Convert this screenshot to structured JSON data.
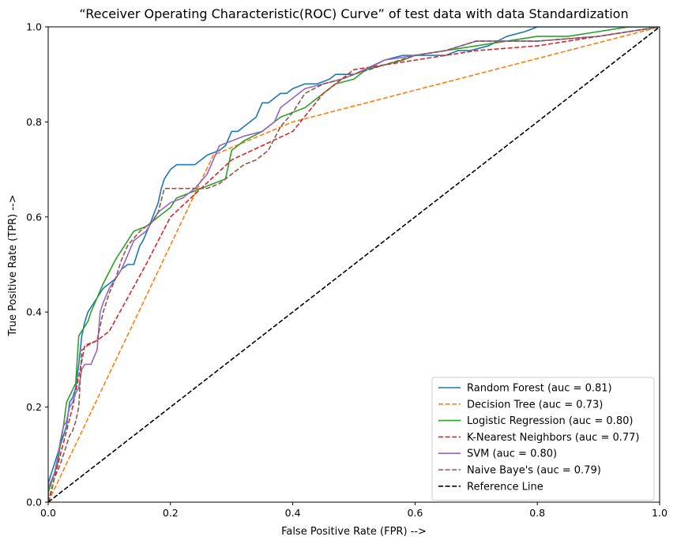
{
  "chart_data": {
    "type": "line",
    "title": "“Receiver Operating Characteristic(ROC) Curve” of test data with data Standardization",
    "xlabel": "False Positive Rate (FPR) -->",
    "ylabel": "True Positive Rate (TPR) -->",
    "xlim": [
      0,
      1.0
    ],
    "ylim": [
      0,
      1.0
    ],
    "xticks": [
      "0.0",
      "0.2",
      "0.4",
      "0.6",
      "0.8",
      "1.0"
    ],
    "yticks": [
      "0.0",
      "0.2",
      "0.4",
      "0.6",
      "0.8",
      "1.0"
    ],
    "grid": false,
    "legend_position": "lower right",
    "series": [
      {
        "name": "Random Forest (auc = 0.81)",
        "color": "#1f77b4",
        "dash": "solid",
        "x": [
          0,
          0,
          0.01,
          0.02,
          0.03,
          0.035,
          0.04,
          0.045,
          0.05,
          0.055,
          0.06,
          0.065,
          0.07,
          0.08,
          0.09,
          0.1,
          0.11,
          0.12,
          0.13,
          0.14,
          0.15,
          0.155,
          0.165,
          0.18,
          0.185,
          0.19,
          0.195,
          0.2,
          0.21,
          0.22,
          0.24,
          0.26,
          0.28,
          0.29,
          0.3,
          0.31,
          0.32,
          0.33,
          0.34,
          0.35,
          0.36,
          0.37,
          0.38,
          0.39,
          0.4,
          0.42,
          0.44,
          0.46,
          0.47,
          0.48,
          0.5,
          0.52,
          0.55,
          0.58,
          0.6,
          0.62,
          0.65,
          0.67,
          0.69,
          0.72,
          0.75,
          0.78,
          0.8,
          0.85,
          0.9,
          0.95,
          1.0
        ],
        "y": [
          0,
          0.04,
          0.08,
          0.12,
          0.16,
          0.21,
          0.22,
          0.24,
          0.29,
          0.35,
          0.38,
          0.4,
          0.41,
          0.43,
          0.45,
          0.46,
          0.47,
          0.49,
          0.5,
          0.5,
          0.54,
          0.55,
          0.58,
          0.63,
          0.66,
          0.68,
          0.69,
          0.7,
          0.71,
          0.71,
          0.71,
          0.73,
          0.74,
          0.75,
          0.78,
          0.78,
          0.79,
          0.8,
          0.81,
          0.84,
          0.84,
          0.85,
          0.86,
          0.86,
          0.87,
          0.88,
          0.88,
          0.89,
          0.9,
          0.9,
          0.9,
          0.91,
          0.93,
          0.94,
          0.94,
          0.94,
          0.94,
          0.95,
          0.95,
          0.96,
          0.98,
          0.99,
          1.0,
          1.0,
          1.0,
          1.0,
          1.0
        ]
      },
      {
        "name": "Decision Tree (auc = 0.73)",
        "color": "#ff7f0e",
        "dash": "dashed",
        "x": [
          0,
          0.27,
          0.4,
          1.0
        ],
        "y": [
          0,
          0.73,
          0.8,
          1.0
        ]
      },
      {
        "name": "Logistic Regression (auc = 0.80)",
        "color": "#2ca02c",
        "dash": "solid",
        "x": [
          0,
          0,
          0.005,
          0.01,
          0.015,
          0.02,
          0.025,
          0.03,
          0.045,
          0.05,
          0.055,
          0.06,
          0.065,
          0.07,
          0.08,
          0.09,
          0.11,
          0.115,
          0.12,
          0.125,
          0.13,
          0.14,
          0.16,
          0.17,
          0.18,
          0.19,
          0.2,
          0.21,
          0.23,
          0.25,
          0.27,
          0.29,
          0.3,
          0.32,
          0.35,
          0.36,
          0.38,
          0.4,
          0.42,
          0.44,
          0.46,
          0.47,
          0.5,
          0.52,
          0.55,
          0.58,
          0.6,
          0.65,
          0.7,
          0.75,
          0.8,
          0.85,
          0.9,
          0.95,
          1.0
        ],
        "y": [
          0,
          0.02,
          0.04,
          0.06,
          0.08,
          0.12,
          0.16,
          0.21,
          0.25,
          0.35,
          0.36,
          0.37,
          0.38,
          0.4,
          0.43,
          0.46,
          0.51,
          0.52,
          0.53,
          0.54,
          0.55,
          0.57,
          0.58,
          0.59,
          0.6,
          0.61,
          0.62,
          0.64,
          0.65,
          0.66,
          0.67,
          0.68,
          0.74,
          0.76,
          0.78,
          0.79,
          0.81,
          0.82,
          0.83,
          0.85,
          0.87,
          0.88,
          0.89,
          0.91,
          0.92,
          0.93,
          0.94,
          0.95,
          0.96,
          0.97,
          0.98,
          0.98,
          0.99,
          1.0,
          1.0
        ]
      },
      {
        "name": "K-Nearest Neighbors (auc = 0.77)",
        "color": "#d62728",
        "dash": "dashed",
        "x": [
          0,
          0.02,
          0.04,
          0.06,
          0.08,
          0.1,
          0.13,
          0.16,
          0.2,
          0.25,
          0.3,
          0.35,
          0.4,
          0.45,
          0.5,
          0.6,
          0.7,
          0.8,
          0.9,
          1.0
        ],
        "y": [
          0,
          0.1,
          0.2,
          0.33,
          0.34,
          0.36,
          0.43,
          0.5,
          0.6,
          0.66,
          0.72,
          0.75,
          0.78,
          0.86,
          0.91,
          0.93,
          0.95,
          0.96,
          0.98,
          1.0
        ]
      },
      {
        "name": "SVM (auc = 0.80)",
        "color": "#9467bd",
        "dash": "solid",
        "x": [
          0,
          0,
          0.01,
          0.015,
          0.02,
          0.025,
          0.03,
          0.035,
          0.04,
          0.045,
          0.05,
          0.055,
          0.06,
          0.07,
          0.08,
          0.085,
          0.09,
          0.1,
          0.11,
          0.12,
          0.13,
          0.14,
          0.15,
          0.16,
          0.17,
          0.18,
          0.2,
          0.22,
          0.24,
          0.26,
          0.27,
          0.28,
          0.3,
          0.32,
          0.35,
          0.37,
          0.38,
          0.4,
          0.42,
          0.45,
          0.48,
          0.5,
          0.55,
          0.6,
          0.65,
          0.7,
          0.8,
          0.9,
          1.0
        ],
        "y": [
          0,
          0.03,
          0.06,
          0.09,
          0.13,
          0.16,
          0.17,
          0.2,
          0.21,
          0.23,
          0.24,
          0.28,
          0.29,
          0.29,
          0.32,
          0.4,
          0.42,
          0.45,
          0.47,
          0.49,
          0.52,
          0.55,
          0.56,
          0.57,
          0.59,
          0.61,
          0.63,
          0.64,
          0.66,
          0.69,
          0.72,
          0.75,
          0.76,
          0.77,
          0.78,
          0.8,
          0.83,
          0.85,
          0.87,
          0.88,
          0.89,
          0.9,
          0.93,
          0.94,
          0.95,
          0.97,
          0.97,
          0.98,
          1.0
        ]
      },
      {
        "name": "Naive Baye's (auc = 0.79)",
        "color": "#8c564b",
        "dash": "dashed",
        "x": [
          0,
          0.005,
          0.01,
          0.02,
          0.025,
          0.03,
          0.035,
          0.04,
          0.045,
          0.05,
          0.055,
          0.065,
          0.08,
          0.09,
          0.1,
          0.11,
          0.12,
          0.13,
          0.15,
          0.17,
          0.18,
          0.19,
          0.2,
          0.22,
          0.24,
          0.26,
          0.28,
          0.3,
          0.32,
          0.34,
          0.36,
          0.38,
          0.4,
          0.42,
          0.45,
          0.48,
          0.5,
          0.55,
          0.6,
          0.65,
          0.7,
          0.8,
          0.9,
          0.95,
          1.0
        ],
        "y": [
          0,
          0.02,
          0.05,
          0.08,
          0.1,
          0.12,
          0.14,
          0.15,
          0.17,
          0.2,
          0.32,
          0.33,
          0.34,
          0.4,
          0.44,
          0.47,
          0.51,
          0.54,
          0.57,
          0.59,
          0.61,
          0.66,
          0.66,
          0.66,
          0.66,
          0.66,
          0.67,
          0.69,
          0.71,
          0.72,
          0.74,
          0.79,
          0.82,
          0.86,
          0.88,
          0.89,
          0.9,
          0.92,
          0.94,
          0.95,
          0.97,
          0.97,
          0.98,
          0.99,
          1.0
        ]
      },
      {
        "name": "Reference Line",
        "color": "#000000",
        "dash": "dashed",
        "x": [
          0,
          1.0
        ],
        "y": [
          0,
          1.0
        ]
      }
    ]
  }
}
